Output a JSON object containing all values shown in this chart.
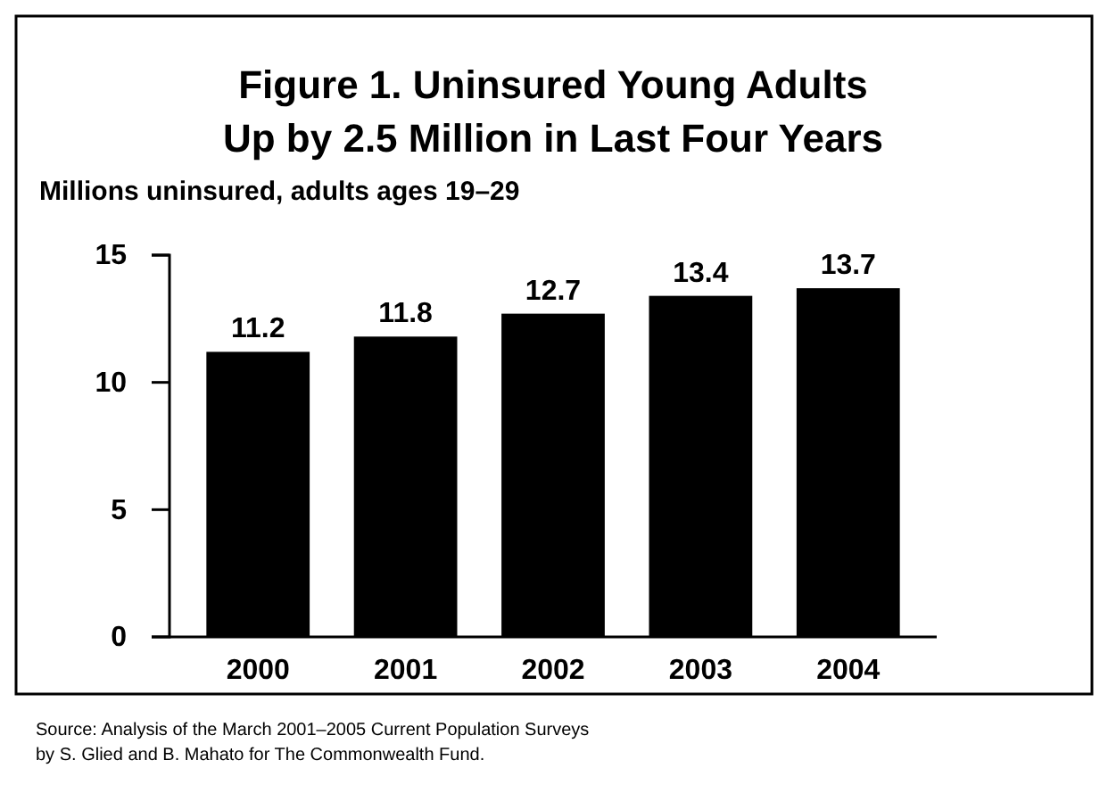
{
  "chart_data": {
    "type": "bar",
    "title": "Figure 1. Uninsured Young Adults\nUp by 2.5 Million in Last Four Years",
    "ylabel": "Millions uninsured, adults ages 19–29",
    "categories": [
      "2000",
      "2001",
      "2002",
      "2003",
      "2004"
    ],
    "values": [
      11.2,
      11.8,
      12.7,
      13.4,
      13.7
    ],
    "color": "#000000",
    "ylim": [
      0,
      15
    ],
    "yticks": [
      0,
      5,
      10,
      15
    ],
    "data_labels": true,
    "grid": false,
    "annotations": [
      "Source: Analysis of the March 2001–2005 Current Population Surveys",
      "by S. Glied and B. Mahato for The Commonwealth Fund."
    ]
  }
}
